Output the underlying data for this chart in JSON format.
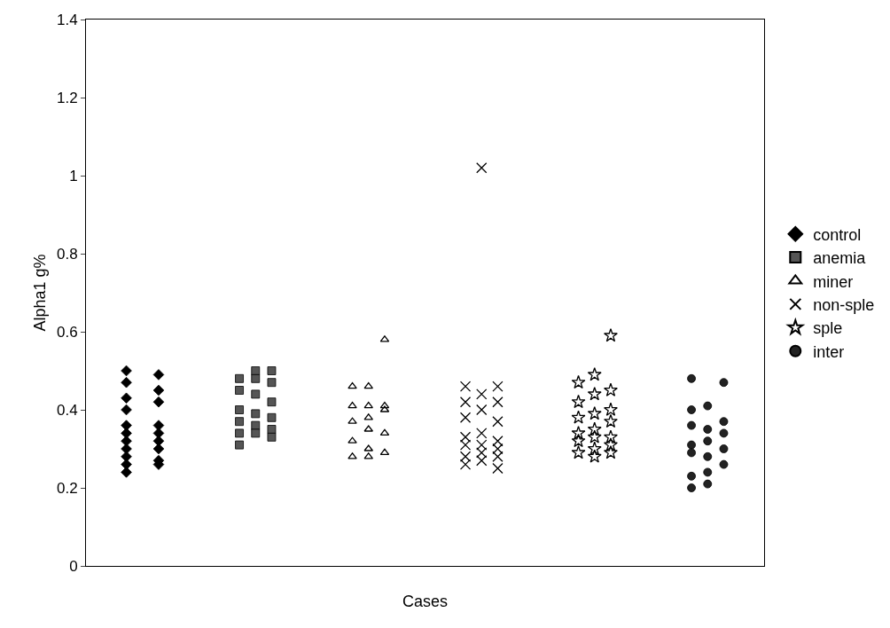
{
  "chart_data": {
    "type": "scatter",
    "xlabel": "Cases",
    "ylabel": "Alpha1 g%",
    "categories": [
      null,
      null,
      null,
      null,
      null,
      null,
      null,
      null,
      null,
      null,
      null,
      null,
      null,
      null,
      null,
      null,
      null,
      null,
      null,
      null,
      null,
      null,
      null,
      null,
      null,
      null,
      null,
      null,
      null,
      null,
      null,
      null,
      null,
      null,
      null,
      null,
      null,
      null,
      null,
      null,
      null,
      null
    ],
    "ylim": [
      0,
      1.4
    ],
    "yticks": [
      0,
      0.2,
      0.4,
      0.6,
      0.8,
      1,
      1.2,
      1.4
    ],
    "grid": false,
    "legend": "right",
    "series": [
      {
        "name": "control",
        "color": "#000000",
        "marker": "diamond",
        "values": [
          null,
          null,
          0.5,
          null,
          0.49,
          null,
          null,
          null,
          null,
          null,
          null,
          null,
          null,
          null,
          null,
          null,
          null,
          null,
          null,
          null,
          null,
          null,
          null,
          null,
          null,
          null,
          null,
          null,
          null,
          null,
          null,
          null,
          null,
          null,
          null,
          null,
          null,
          null,
          null,
          null,
          null,
          null
        ]
      },
      {
        "color": "#000000",
        "marker": "diamond",
        "values": [
          null,
          null,
          0.47,
          null,
          0.45,
          null,
          null,
          null,
          null,
          null,
          null,
          null,
          null,
          null,
          null,
          null,
          null,
          null,
          null,
          null,
          null,
          null,
          null,
          null,
          null,
          null,
          null,
          null,
          null,
          null,
          null,
          null,
          null,
          null,
          null,
          null,
          null,
          null,
          null,
          null,
          null,
          null
        ]
      },
      {
        "color": "#000000",
        "marker": "diamond",
        "values": [
          null,
          null,
          0.43,
          null,
          0.42,
          null,
          null,
          null,
          null,
          null,
          null,
          null,
          null,
          null,
          null,
          null,
          null,
          null,
          null,
          null,
          null,
          null,
          null,
          null,
          null,
          null,
          null,
          null,
          null,
          null,
          null,
          null,
          null,
          null,
          null,
          null,
          null,
          null,
          null,
          null,
          null,
          null
        ]
      },
      {
        "color": "#000000",
        "marker": "diamond",
        "values": [
          null,
          null,
          0.4,
          null,
          0.36,
          null,
          null,
          null,
          null,
          null,
          null,
          null,
          null,
          null,
          null,
          null,
          null,
          null,
          null,
          null,
          null,
          null,
          null,
          null,
          null,
          null,
          null,
          null,
          null,
          null,
          null,
          null,
          null,
          null,
          null,
          null,
          null,
          null,
          null,
          null,
          null,
          null
        ]
      },
      {
        "color": "#000000",
        "marker": "diamond",
        "values": [
          null,
          null,
          0.36,
          null,
          0.34,
          null,
          null,
          null,
          null,
          null,
          null,
          null,
          null,
          null,
          null,
          null,
          null,
          null,
          null,
          null,
          null,
          null,
          null,
          null,
          null,
          null,
          null,
          null,
          null,
          null,
          null,
          null,
          null,
          null,
          null,
          null,
          null,
          null,
          null,
          null,
          null,
          null
        ]
      },
      {
        "color": "#000000",
        "marker": "diamond",
        "values": [
          null,
          null,
          0.34,
          null,
          0.32,
          null,
          null,
          null,
          null,
          null,
          null,
          null,
          null,
          null,
          null,
          null,
          null,
          null,
          null,
          null,
          null,
          null,
          null,
          null,
          null,
          null,
          null,
          null,
          null,
          null,
          null,
          null,
          null,
          null,
          null,
          null,
          null,
          null,
          null,
          null,
          null,
          null
        ]
      },
      {
        "color": "#000000",
        "marker": "diamond",
        "values": [
          null,
          null,
          0.32,
          null,
          0.3,
          null,
          null,
          null,
          null,
          null,
          null,
          null,
          null,
          null,
          null,
          null,
          null,
          null,
          null,
          null,
          null,
          null,
          null,
          null,
          null,
          null,
          null,
          null,
          null,
          null,
          null,
          null,
          null,
          null,
          null,
          null,
          null,
          null,
          null,
          null,
          null,
          null
        ]
      },
      {
        "color": "#000000",
        "marker": "diamond",
        "values": [
          null,
          null,
          0.3,
          null,
          0.27,
          null,
          null,
          null,
          null,
          null,
          null,
          null,
          null,
          null,
          null,
          null,
          null,
          null,
          null,
          null,
          null,
          null,
          null,
          null,
          null,
          null,
          null,
          null,
          null,
          null,
          null,
          null,
          null,
          null,
          null,
          null,
          null,
          null,
          null,
          null,
          null,
          null
        ]
      },
      {
        "color": "#000000",
        "marker": "diamond",
        "values": [
          null,
          null,
          0.28,
          null,
          0.26,
          null,
          null,
          null,
          null,
          null,
          null,
          null,
          null,
          null,
          null,
          null,
          null,
          null,
          null,
          null,
          null,
          null,
          null,
          null,
          null,
          null,
          null,
          null,
          null,
          null,
          null,
          null,
          null,
          null,
          null,
          null,
          null,
          null,
          null,
          null,
          null,
          null
        ]
      },
      {
        "color": "#000000",
        "marker": "diamond",
        "values": [
          null,
          null,
          0.26,
          null,
          null,
          null,
          null,
          null,
          null,
          null,
          null,
          null,
          null,
          null,
          null,
          null,
          null,
          null,
          null,
          null,
          null,
          null,
          null,
          null,
          null,
          null,
          null,
          null,
          null,
          null,
          null,
          null,
          null,
          null,
          null,
          null,
          null,
          null,
          null,
          null,
          null,
          null
        ]
      },
      {
        "color": "#000000",
        "marker": "diamond",
        "values": [
          null,
          null,
          0.24,
          null,
          null,
          null,
          null,
          null,
          null,
          null,
          null,
          null,
          null,
          null,
          null,
          null,
          null,
          null,
          null,
          null,
          null,
          null,
          null,
          null,
          null,
          null,
          null,
          null,
          null,
          null,
          null,
          null,
          null,
          null,
          null,
          null,
          null,
          null,
          null,
          null,
          null,
          null
        ]
      },
      {
        "name": "anemia",
        "color": "#555555",
        "marker": "square",
        "values": [
          null,
          null,
          null,
          null,
          null,
          null,
          null,
          null,
          null,
          0.48,
          0.5,
          0.5,
          null,
          null,
          null,
          null,
          null,
          null,
          null,
          null,
          null,
          null,
          null,
          null,
          null,
          null,
          null,
          null,
          null,
          null,
          null,
          null,
          null,
          null,
          null,
          null,
          null,
          null,
          null,
          null,
          null,
          null
        ]
      },
      {
        "color": "#555555",
        "marker": "square",
        "values": [
          null,
          null,
          null,
          null,
          null,
          null,
          null,
          null,
          null,
          0.45,
          0.48,
          0.47,
          null,
          null,
          null,
          null,
          null,
          null,
          null,
          null,
          null,
          null,
          null,
          null,
          null,
          null,
          null,
          null,
          null,
          null,
          null,
          null,
          null,
          null,
          null,
          null,
          null,
          null,
          null,
          null,
          null,
          null
        ]
      },
      {
        "color": "#555555",
        "marker": "square",
        "values": [
          null,
          null,
          null,
          null,
          null,
          null,
          null,
          null,
          null,
          0.4,
          0.44,
          0.42,
          null,
          null,
          null,
          null,
          null,
          null,
          null,
          null,
          null,
          null,
          null,
          null,
          null,
          null,
          null,
          null,
          null,
          null,
          null,
          null,
          null,
          null,
          null,
          null,
          null,
          null,
          null,
          null,
          null,
          null
        ]
      },
      {
        "color": "#555555",
        "marker": "square",
        "values": [
          null,
          null,
          null,
          null,
          null,
          null,
          null,
          null,
          null,
          0.37,
          0.39,
          0.38,
          null,
          null,
          null,
          null,
          null,
          null,
          null,
          null,
          null,
          null,
          null,
          null,
          null,
          null,
          null,
          null,
          null,
          null,
          null,
          null,
          null,
          null,
          null,
          null,
          null,
          null,
          null,
          null,
          null,
          null
        ]
      },
      {
        "color": "#555555",
        "marker": "square",
        "values": [
          null,
          null,
          null,
          null,
          null,
          null,
          null,
          null,
          null,
          0.34,
          0.36,
          0.35,
          null,
          null,
          null,
          null,
          null,
          null,
          null,
          null,
          null,
          null,
          null,
          null,
          null,
          null,
          null,
          null,
          null,
          null,
          null,
          null,
          null,
          null,
          null,
          null,
          null,
          null,
          null,
          null,
          null,
          null
        ]
      },
      {
        "color": "#555555",
        "marker": "square",
        "values": [
          null,
          null,
          null,
          null,
          null,
          null,
          null,
          null,
          null,
          0.31,
          0.34,
          0.33,
          null,
          null,
          null,
          null,
          null,
          null,
          null,
          null,
          null,
          null,
          null,
          null,
          null,
          null,
          null,
          null,
          null,
          null,
          null,
          null,
          null,
          null,
          null,
          null,
          null,
          null,
          null,
          null,
          null,
          null
        ]
      },
      {
        "name": "miner",
        "color": "#000000",
        "marker": "triangle",
        "values": [
          null,
          null,
          null,
          null,
          null,
          null,
          null,
          null,
          null,
          null,
          null,
          null,
          null,
          null,
          null,
          null,
          0.46,
          0.46,
          0.58,
          null,
          null,
          null,
          null,
          null,
          null,
          null,
          null,
          null,
          null,
          null,
          null,
          null,
          null,
          null,
          null,
          null,
          null,
          null,
          null,
          null,
          null,
          null
        ]
      },
      {
        "color": "#000000",
        "marker": "triangle",
        "values": [
          null,
          null,
          null,
          null,
          null,
          null,
          null,
          null,
          null,
          null,
          null,
          null,
          null,
          null,
          null,
          null,
          0.41,
          0.41,
          0.41,
          null,
          null,
          null,
          null,
          null,
          null,
          null,
          null,
          null,
          null,
          null,
          null,
          null,
          null,
          null,
          null,
          null,
          null,
          null,
          null,
          null,
          null,
          null
        ]
      },
      {
        "color": "#000000",
        "marker": "triangle",
        "values": [
          null,
          null,
          null,
          null,
          null,
          null,
          null,
          null,
          null,
          null,
          null,
          null,
          null,
          null,
          null,
          null,
          0.37,
          0.38,
          0.4,
          null,
          null,
          null,
          null,
          null,
          null,
          null,
          null,
          null,
          null,
          null,
          null,
          null,
          null,
          null,
          null,
          null,
          null,
          null,
          null,
          null,
          null,
          null
        ]
      },
      {
        "color": "#000000",
        "marker": "triangle",
        "values": [
          null,
          null,
          null,
          null,
          null,
          null,
          null,
          null,
          null,
          null,
          null,
          null,
          null,
          null,
          null,
          null,
          0.32,
          0.35,
          0.34,
          null,
          null,
          null,
          null,
          null,
          null,
          null,
          null,
          null,
          null,
          null,
          null,
          null,
          null,
          null,
          null,
          null,
          null,
          null,
          null,
          null,
          null,
          null
        ]
      },
      {
        "color": "#000000",
        "marker": "triangle",
        "values": [
          null,
          null,
          null,
          null,
          null,
          null,
          null,
          null,
          null,
          null,
          null,
          null,
          null,
          null,
          null,
          null,
          0.28,
          0.3,
          0.29,
          null,
          null,
          null,
          null,
          null,
          null,
          null,
          null,
          null,
          null,
          null,
          null,
          null,
          null,
          null,
          null,
          null,
          null,
          null,
          null,
          null,
          null,
          null
        ]
      },
      {
        "color": "#000000",
        "marker": "triangle",
        "values": [
          null,
          null,
          null,
          null,
          null,
          null,
          null,
          null,
          null,
          null,
          null,
          null,
          null,
          null,
          null,
          null,
          null,
          0.28,
          null,
          null,
          null,
          null,
          null,
          null,
          null,
          null,
          null,
          null,
          null,
          null,
          null,
          null,
          null,
          null,
          null,
          null,
          null,
          null,
          null,
          null,
          null,
          null
        ]
      },
      {
        "name": "non-sple",
        "color": "#000000",
        "marker": "cross",
        "values": [
          null,
          null,
          null,
          null,
          null,
          null,
          null,
          null,
          null,
          null,
          null,
          null,
          null,
          null,
          null,
          null,
          null,
          null,
          null,
          null,
          null,
          null,
          null,
          0.46,
          1.02,
          0.46,
          null,
          null,
          null,
          null,
          null,
          null,
          null,
          null,
          null,
          null,
          null,
          null,
          null,
          null,
          null,
          null
        ]
      },
      {
        "color": "#000000",
        "marker": "cross",
        "values": [
          null,
          null,
          null,
          null,
          null,
          null,
          null,
          null,
          null,
          null,
          null,
          null,
          null,
          null,
          null,
          null,
          null,
          null,
          null,
          null,
          null,
          null,
          null,
          0.42,
          0.44,
          0.42,
          null,
          null,
          null,
          null,
          null,
          null,
          null,
          null,
          null,
          null,
          null,
          null,
          null,
          null,
          null,
          null
        ]
      },
      {
        "color": "#000000",
        "marker": "cross",
        "values": [
          null,
          null,
          null,
          null,
          null,
          null,
          null,
          null,
          null,
          null,
          null,
          null,
          null,
          null,
          null,
          null,
          null,
          null,
          null,
          null,
          null,
          null,
          null,
          0.38,
          0.4,
          0.37,
          null,
          null,
          null,
          null,
          null,
          null,
          null,
          null,
          null,
          null,
          null,
          null,
          null,
          null,
          null,
          null
        ]
      },
      {
        "color": "#000000",
        "marker": "cross",
        "values": [
          null,
          null,
          null,
          null,
          null,
          null,
          null,
          null,
          null,
          null,
          null,
          null,
          null,
          null,
          null,
          null,
          null,
          null,
          null,
          null,
          null,
          null,
          null,
          0.33,
          0.34,
          0.32,
          null,
          null,
          null,
          null,
          null,
          null,
          null,
          null,
          null,
          null,
          null,
          null,
          null,
          null,
          null,
          null
        ]
      },
      {
        "color": "#000000",
        "marker": "cross",
        "values": [
          null,
          null,
          null,
          null,
          null,
          null,
          null,
          null,
          null,
          null,
          null,
          null,
          null,
          null,
          null,
          null,
          null,
          null,
          null,
          null,
          null,
          null,
          null,
          0.31,
          0.31,
          0.3,
          null,
          null,
          null,
          null,
          null,
          null,
          null,
          null,
          null,
          null,
          null,
          null,
          null,
          null,
          null,
          null
        ]
      },
      {
        "color": "#000000",
        "marker": "cross",
        "values": [
          null,
          null,
          null,
          null,
          null,
          null,
          null,
          null,
          null,
          null,
          null,
          null,
          null,
          null,
          null,
          null,
          null,
          null,
          null,
          null,
          null,
          null,
          null,
          0.28,
          0.29,
          0.28,
          null,
          null,
          null,
          null,
          null,
          null,
          null,
          null,
          null,
          null,
          null,
          null,
          null,
          null,
          null,
          null
        ]
      },
      {
        "color": "#000000",
        "marker": "cross",
        "values": [
          null,
          null,
          null,
          null,
          null,
          null,
          null,
          null,
          null,
          null,
          null,
          null,
          null,
          null,
          null,
          null,
          null,
          null,
          null,
          null,
          null,
          null,
          null,
          0.26,
          0.27,
          0.25,
          null,
          null,
          null,
          null,
          null,
          null,
          null,
          null,
          null,
          null,
          null,
          null,
          null,
          null,
          null,
          null
        ]
      },
      {
        "name": "sple",
        "color": "#000000",
        "marker": "star",
        "values": [
          null,
          null,
          null,
          null,
          null,
          null,
          null,
          null,
          null,
          null,
          null,
          null,
          null,
          null,
          null,
          null,
          null,
          null,
          null,
          null,
          null,
          null,
          null,
          null,
          null,
          null,
          null,
          null,
          null,
          null,
          0.47,
          0.49,
          0.59,
          null,
          null,
          null,
          null,
          null,
          null,
          null,
          null,
          null
        ]
      },
      {
        "color": "#000000",
        "marker": "star",
        "values": [
          null,
          null,
          null,
          null,
          null,
          null,
          null,
          null,
          null,
          null,
          null,
          null,
          null,
          null,
          null,
          null,
          null,
          null,
          null,
          null,
          null,
          null,
          null,
          null,
          null,
          null,
          null,
          null,
          null,
          null,
          0.42,
          0.44,
          0.45,
          null,
          null,
          null,
          null,
          null,
          null,
          null,
          null,
          null
        ]
      },
      {
        "color": "#000000",
        "marker": "star",
        "values": [
          null,
          null,
          null,
          null,
          null,
          null,
          null,
          null,
          null,
          null,
          null,
          null,
          null,
          null,
          null,
          null,
          null,
          null,
          null,
          null,
          null,
          null,
          null,
          null,
          null,
          null,
          null,
          null,
          null,
          null,
          0.38,
          0.39,
          0.4,
          null,
          null,
          null,
          null,
          null,
          null,
          null,
          null,
          null
        ]
      },
      {
        "color": "#000000",
        "marker": "star",
        "values": [
          null,
          null,
          null,
          null,
          null,
          null,
          null,
          null,
          null,
          null,
          null,
          null,
          null,
          null,
          null,
          null,
          null,
          null,
          null,
          null,
          null,
          null,
          null,
          null,
          null,
          null,
          null,
          null,
          null,
          null,
          0.34,
          0.35,
          0.37,
          null,
          null,
          null,
          null,
          null,
          null,
          null,
          null,
          null
        ]
      },
      {
        "color": "#000000",
        "marker": "star",
        "values": [
          null,
          null,
          null,
          null,
          null,
          null,
          null,
          null,
          null,
          null,
          null,
          null,
          null,
          null,
          null,
          null,
          null,
          null,
          null,
          null,
          null,
          null,
          null,
          null,
          null,
          null,
          null,
          null,
          null,
          null,
          0.32,
          0.33,
          0.33,
          null,
          null,
          null,
          null,
          null,
          null,
          null,
          null,
          null
        ]
      },
      {
        "color": "#000000",
        "marker": "star",
        "values": [
          null,
          null,
          null,
          null,
          null,
          null,
          null,
          null,
          null,
          null,
          null,
          null,
          null,
          null,
          null,
          null,
          null,
          null,
          null,
          null,
          null,
          null,
          null,
          null,
          null,
          null,
          null,
          null,
          null,
          null,
          0.29,
          0.3,
          0.31,
          null,
          null,
          null,
          null,
          null,
          null,
          null,
          null,
          null
        ]
      },
      {
        "color": "#000000",
        "marker": "star",
        "values": [
          null,
          null,
          null,
          null,
          null,
          null,
          null,
          null,
          null,
          null,
          null,
          null,
          null,
          null,
          null,
          null,
          null,
          null,
          null,
          null,
          null,
          null,
          null,
          null,
          null,
          null,
          null,
          null,
          null,
          null,
          null,
          0.28,
          0.29,
          null,
          null,
          null,
          null,
          null,
          null,
          null,
          null,
          null
        ]
      },
      {
        "name": "inter",
        "color": "#222222",
        "marker": "circle",
        "values": [
          null,
          null,
          null,
          null,
          null,
          null,
          null,
          null,
          null,
          null,
          null,
          null,
          null,
          null,
          null,
          null,
          null,
          null,
          null,
          null,
          null,
          null,
          null,
          null,
          null,
          null,
          null,
          null,
          null,
          null,
          null,
          null,
          null,
          null,
          null,
          null,
          null,
          0.48,
          0.41,
          0.47,
          null,
          null
        ]
      },
      {
        "color": "#222222",
        "marker": "circle",
        "values": [
          null,
          null,
          null,
          null,
          null,
          null,
          null,
          null,
          null,
          null,
          null,
          null,
          null,
          null,
          null,
          null,
          null,
          null,
          null,
          null,
          null,
          null,
          null,
          null,
          null,
          null,
          null,
          null,
          null,
          null,
          null,
          null,
          null,
          null,
          null,
          null,
          null,
          0.4,
          0.35,
          0.37,
          null,
          null
        ]
      },
      {
        "color": "#222222",
        "marker": "circle",
        "values": [
          null,
          null,
          null,
          null,
          null,
          null,
          null,
          null,
          null,
          null,
          null,
          null,
          null,
          null,
          null,
          null,
          null,
          null,
          null,
          null,
          null,
          null,
          null,
          null,
          null,
          null,
          null,
          null,
          null,
          null,
          null,
          null,
          null,
          null,
          null,
          null,
          null,
          0.36,
          0.32,
          0.34,
          null,
          null
        ]
      },
      {
        "color": "#222222",
        "marker": "circle",
        "values": [
          null,
          null,
          null,
          null,
          null,
          null,
          null,
          null,
          null,
          null,
          null,
          null,
          null,
          null,
          null,
          null,
          null,
          null,
          null,
          null,
          null,
          null,
          null,
          null,
          null,
          null,
          null,
          null,
          null,
          null,
          null,
          null,
          null,
          null,
          null,
          null,
          null,
          0.31,
          0.28,
          0.3,
          null,
          null
        ]
      },
      {
        "color": "#222222",
        "marker": "circle",
        "values": [
          null,
          null,
          null,
          null,
          null,
          null,
          null,
          null,
          null,
          null,
          null,
          null,
          null,
          null,
          null,
          null,
          null,
          null,
          null,
          null,
          null,
          null,
          null,
          null,
          null,
          null,
          null,
          null,
          null,
          null,
          null,
          null,
          null,
          null,
          null,
          null,
          null,
          0.29,
          0.24,
          0.26,
          null,
          null
        ]
      },
      {
        "color": "#222222",
        "marker": "circle",
        "values": [
          null,
          null,
          null,
          null,
          null,
          null,
          null,
          null,
          null,
          null,
          null,
          null,
          null,
          null,
          null,
          null,
          null,
          null,
          null,
          null,
          null,
          null,
          null,
          null,
          null,
          null,
          null,
          null,
          null,
          null,
          null,
          null,
          null,
          null,
          null,
          null,
          null,
          0.23,
          0.21,
          null,
          null,
          null
        ]
      },
      {
        "color": "#222222",
        "marker": "circle",
        "values": [
          null,
          null,
          null,
          null,
          null,
          null,
          null,
          null,
          null,
          null,
          null,
          null,
          null,
          null,
          null,
          null,
          null,
          null,
          null,
          null,
          null,
          null,
          null,
          null,
          null,
          null,
          null,
          null,
          null,
          null,
          null,
          null,
          null,
          null,
          null,
          null,
          null,
          0.2,
          null,
          null,
          null,
          null
        ]
      }
    ]
  }
}
